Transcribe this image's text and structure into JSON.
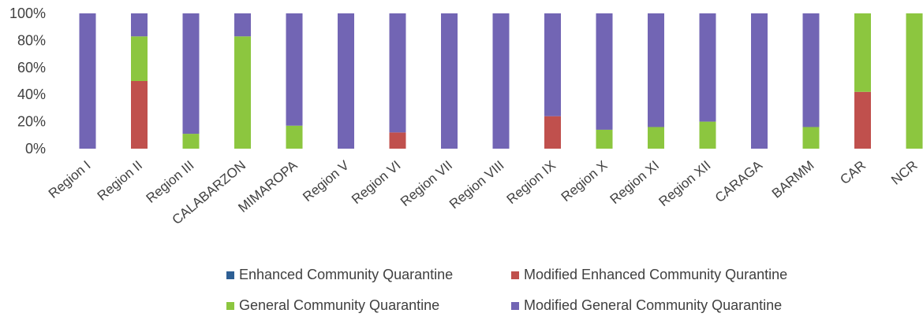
{
  "chart_data": {
    "type": "bar",
    "stacked": true,
    "percent": true,
    "categories": [
      "Region I",
      "Region II",
      "Region III",
      "CALABARZON",
      "MIMAROPA",
      "Region V",
      "Region VI",
      "Region VII",
      "Region VIII",
      "Region IX",
      "Region X",
      "Region XI",
      "Region XII",
      "CARAGA",
      "BARMM",
      "CAR",
      "NCR"
    ],
    "y_ticks": [
      "0%",
      "20%",
      "40%",
      "60%",
      "80%",
      "100%"
    ],
    "ylim": [
      0,
      100
    ],
    "series": [
      {
        "name": "Enhanced Community Quarantine",
        "color": "#2e5f94",
        "values": [
          0,
          0,
          0,
          0,
          0,
          0,
          0,
          0,
          0,
          0,
          0,
          0,
          0,
          0,
          0,
          0,
          0
        ]
      },
      {
        "name": "Modified Enhanced Community Qurantine",
        "color": "#c0504d",
        "values": [
          0,
          50,
          0,
          0,
          0,
          0,
          12,
          0,
          0,
          24,
          0,
          0,
          0,
          0,
          0,
          42,
          0
        ]
      },
      {
        "name": "General Community Quarantine",
        "color": "#8cc63f",
        "values": [
          0,
          33,
          11,
          83,
          17,
          0,
          0,
          0,
          0,
          0,
          14,
          16,
          20,
          0,
          16,
          58,
          100
        ]
      },
      {
        "name": "Modified General Community Quarantine",
        "color": "#7265b4",
        "values": [
          100,
          17,
          89,
          17,
          83,
          100,
          88,
          100,
          100,
          76,
          86,
          84,
          80,
          100,
          84,
          0,
          0
        ]
      }
    ],
    "grid": false,
    "legend_position": "bottom"
  }
}
